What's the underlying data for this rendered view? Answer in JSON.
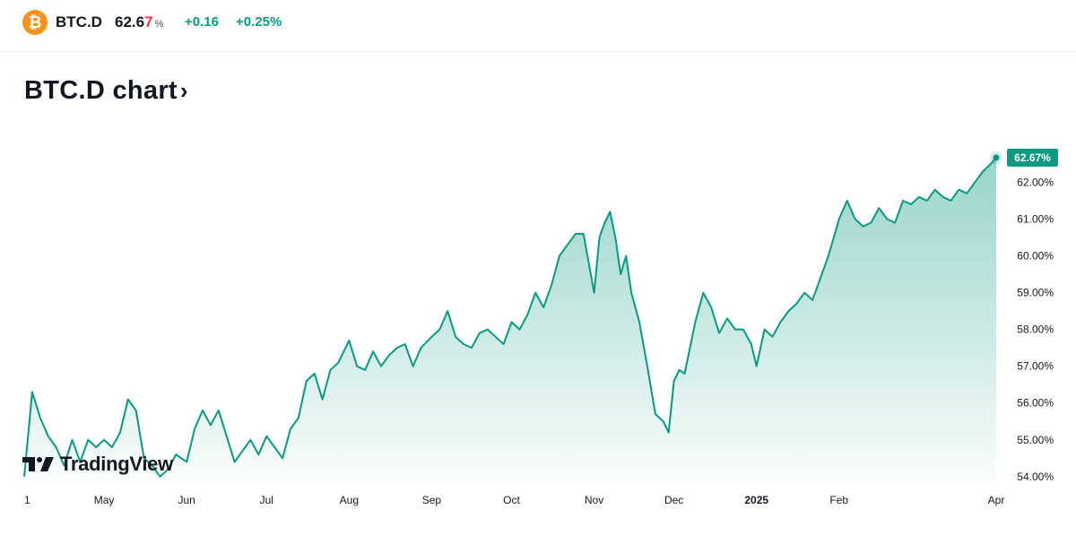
{
  "header": {
    "symbol": "BTC.D",
    "price_main": "62.6",
    "price_last_digit": "7",
    "price_unit": "%",
    "change": "+0.16",
    "change_pct": "+0.25%",
    "coin_icon": "bitcoin-icon",
    "colors": {
      "up": "#089981",
      "down": "#f23645",
      "coin": "#f7931a"
    }
  },
  "title": {
    "text": "BTC.D chart",
    "chevron": "›"
  },
  "brand": {
    "name": "TradingView",
    "icon": "tradingview-logo-icon"
  },
  "chart_data": {
    "type": "area",
    "title": "BTC.D chart",
    "xlabel": "",
    "ylabel": "",
    "ylim": [
      53.85,
      63.3
    ],
    "line_color": "#089981",
    "y_ticks": [
      "54.00%",
      "55.00%",
      "56.00%",
      "57.00%",
      "58.00%",
      "59.00%",
      "60.00%",
      "61.00%",
      "62.00%"
    ],
    "y_tick_values": [
      54,
      55,
      56,
      57,
      58,
      59,
      60,
      61,
      62
    ],
    "x_ticks": [
      {
        "label": "1",
        "t": 0
      },
      {
        "label": "May",
        "t": 30
      },
      {
        "label": "Jun",
        "t": 61
      },
      {
        "label": "Jul",
        "t": 91
      },
      {
        "label": "Aug",
        "t": 122
      },
      {
        "label": "Sep",
        "t": 153
      },
      {
        "label": "Oct",
        "t": 183
      },
      {
        "label": "Nov",
        "t": 214
      },
      {
        "label": "Dec",
        "t": 244
      },
      {
        "label": "2025",
        "t": 275,
        "bold": true
      },
      {
        "label": "Feb",
        "t": 306
      },
      {
        "label": "Apr",
        "t": 365
      }
    ],
    "last_value_label": "62.67%",
    "last_value": 62.67,
    "series": [
      {
        "name": "BTC.D",
        "t": [
          0,
          3,
          6,
          9,
          12,
          15,
          18,
          21,
          24,
          27,
          30,
          33,
          36,
          39,
          42,
          45,
          48,
          51,
          54,
          57,
          61,
          64,
          67,
          70,
          73,
          76,
          79,
          82,
          85,
          88,
          91,
          94,
          97,
          100,
          103,
          106,
          109,
          112,
          115,
          118,
          122,
          125,
          128,
          131,
          134,
          137,
          140,
          143,
          146,
          149,
          153,
          156,
          159,
          162,
          165,
          168,
          171,
          174,
          177,
          180,
          183,
          186,
          189,
          192,
          195,
          198,
          201,
          204,
          207,
          210,
          214,
          216,
          218,
          220,
          222,
          224,
          226,
          228,
          231,
          234,
          237,
          240,
          242,
          244,
          246,
          248,
          250,
          252,
          255,
          258,
          261,
          264,
          267,
          270,
          273,
          275,
          278,
          281,
          284,
          287,
          290,
          293,
          296,
          299,
          302,
          306,
          309,
          312,
          315,
          318,
          321,
          324,
          327,
          330,
          333,
          336,
          339,
          342,
          345,
          348,
          351,
          354,
          357,
          360,
          363,
          365
        ],
        "values": [
          54.0,
          56.3,
          55.6,
          55.1,
          54.8,
          54.3,
          55.0,
          54.4,
          55.0,
          54.8,
          55.0,
          54.8,
          55.2,
          56.1,
          55.8,
          54.5,
          54.3,
          54.0,
          54.2,
          54.6,
          54.4,
          55.3,
          55.8,
          55.4,
          55.8,
          55.1,
          54.4,
          54.7,
          55.0,
          54.6,
          55.1,
          54.8,
          54.5,
          55.3,
          55.6,
          56.6,
          56.8,
          56.1,
          56.9,
          57.1,
          57.7,
          57.0,
          56.9,
          57.4,
          57.0,
          57.3,
          57.5,
          57.6,
          57.0,
          57.5,
          57.8,
          58.0,
          58.5,
          57.8,
          57.6,
          57.5,
          57.9,
          58.0,
          57.8,
          57.6,
          58.2,
          58.0,
          58.4,
          59.0,
          58.6,
          59.2,
          60.0,
          60.3,
          60.6,
          60.6,
          59.0,
          60.5,
          60.9,
          61.2,
          60.5,
          59.5,
          60.0,
          59.0,
          58.2,
          57.0,
          55.7,
          55.5,
          55.2,
          56.6,
          56.9,
          56.8,
          57.5,
          58.2,
          59.0,
          58.6,
          57.9,
          58.3,
          58.0,
          58.0,
          57.6,
          57.0,
          58.0,
          57.8,
          58.2,
          58.5,
          58.7,
          59.0,
          58.8,
          59.4,
          60.0,
          61.0,
          61.5,
          61.0,
          60.8,
          60.9,
          61.3,
          61.0,
          60.9,
          61.5,
          61.4,
          61.6,
          61.5,
          61.8,
          61.6,
          61.5,
          61.8,
          61.7,
          62.0,
          62.3,
          62.5,
          62.67
        ]
      }
    ]
  }
}
